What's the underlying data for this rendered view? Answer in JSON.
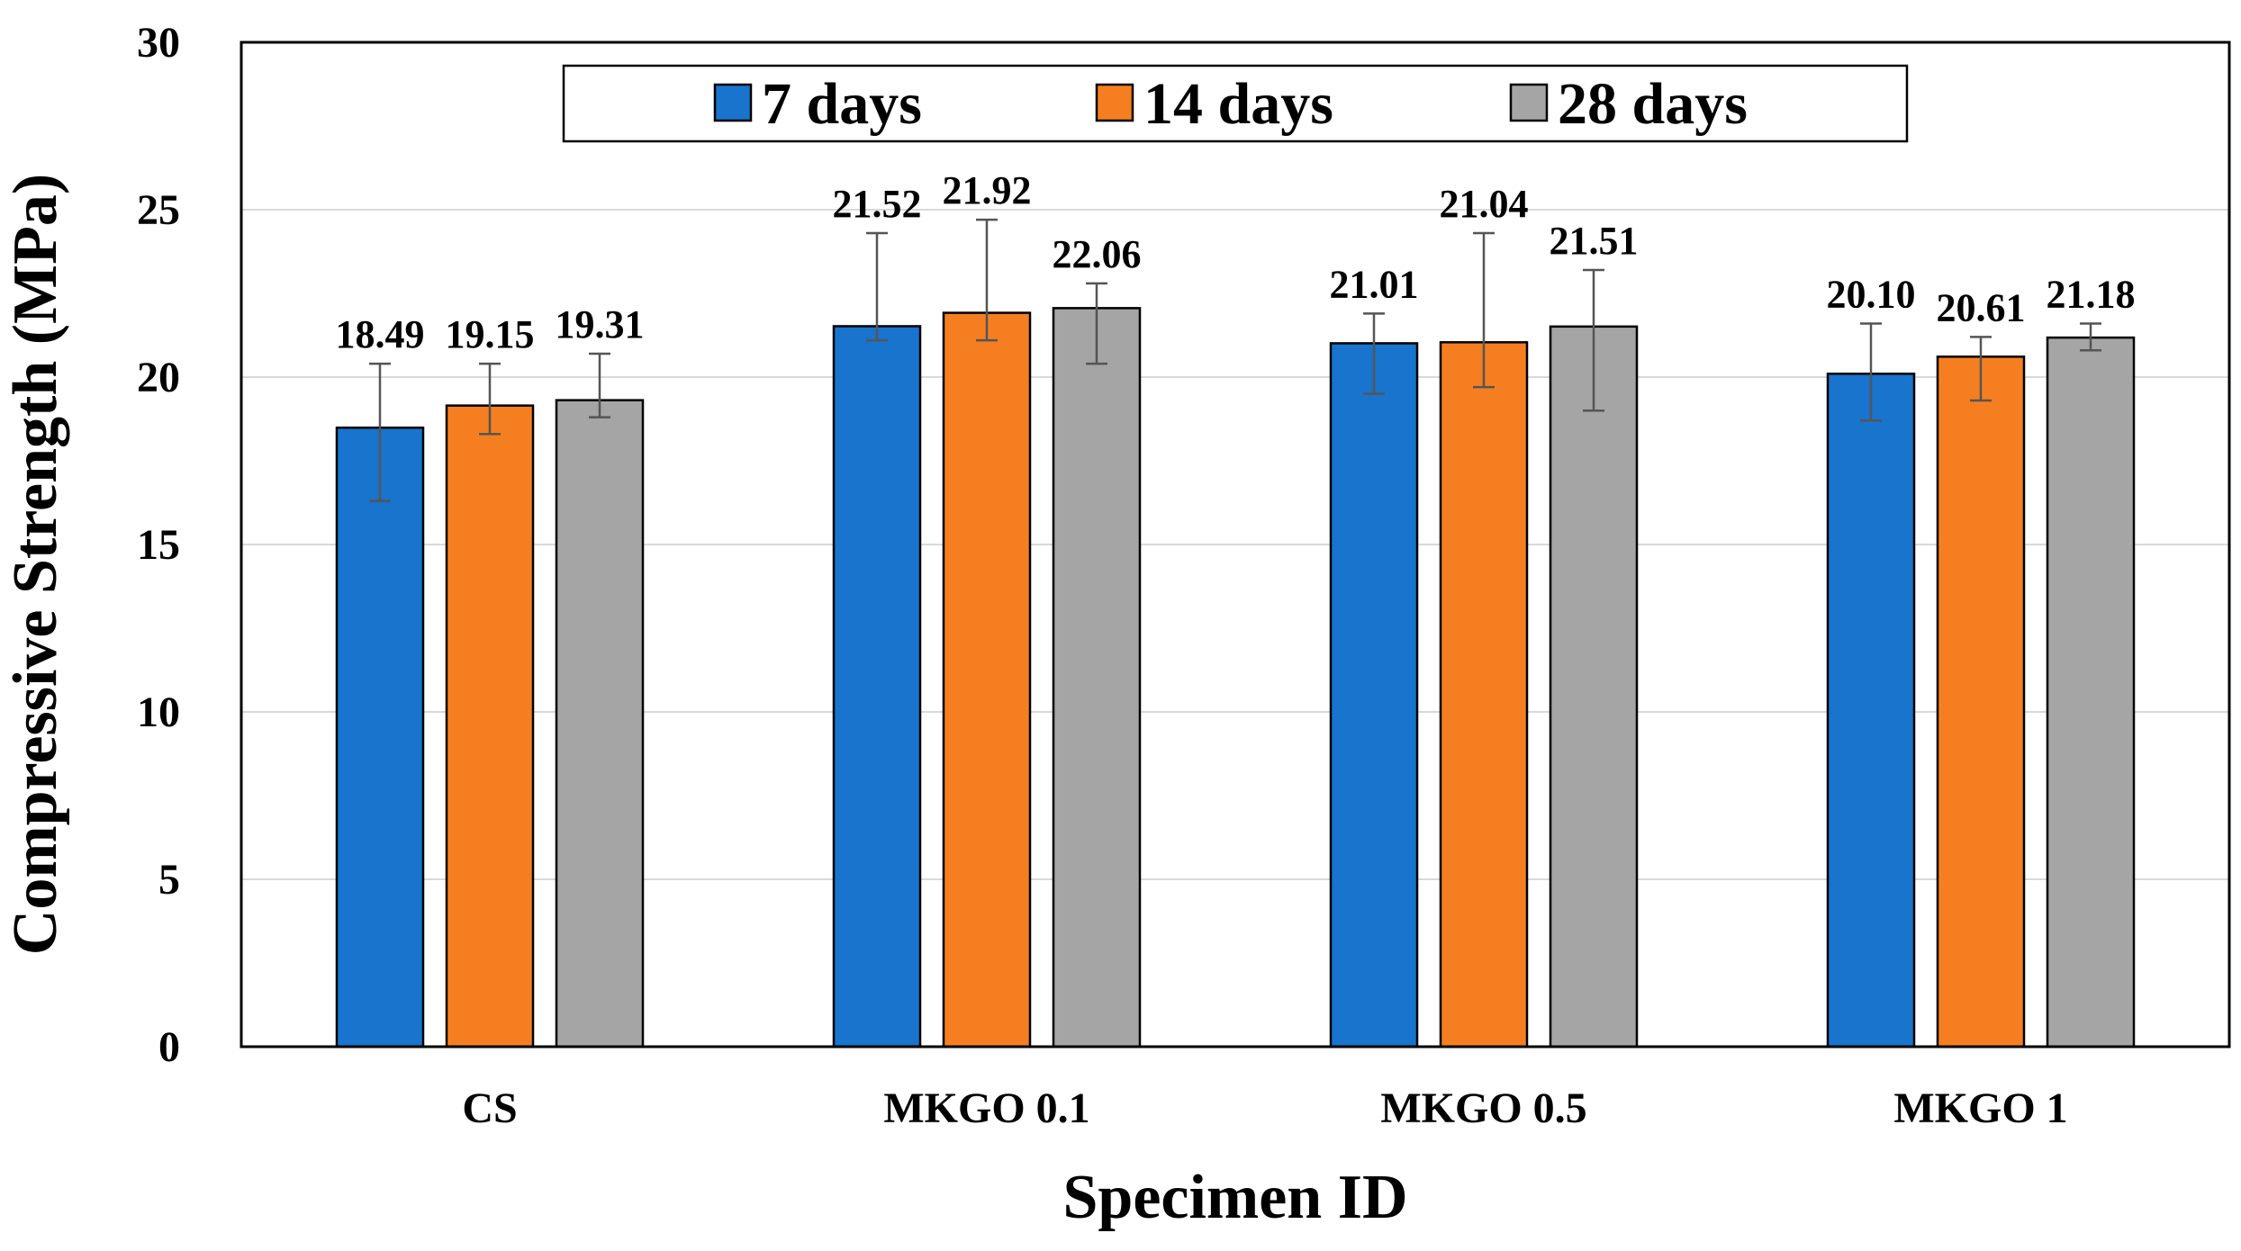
{
  "chart_data": {
    "type": "bar",
    "title": "",
    "xlabel": "Specimen ID",
    "ylabel": "Compressive Strength (MPa)",
    "ylim": [
      0,
      30
    ],
    "yticks": [
      0,
      5,
      10,
      15,
      20,
      25,
      30
    ],
    "ytick_labels": [
      "0",
      "5",
      "10",
      "15",
      "20",
      "25",
      "30"
    ],
    "grid": true,
    "legend_position": "top-center",
    "categories": [
      "CS",
      "MKGO 0.1",
      "MKGO 0.5",
      "MKGO 1"
    ],
    "series": [
      {
        "name": "7 days",
        "color": "#1874CD",
        "values": [
          18.49,
          21.52,
          21.01,
          20.1
        ],
        "labels": [
          "18.49",
          "21.52",
          "21.01",
          "20.10"
        ],
        "error_low": [
          16.3,
          21.1,
          19.5,
          18.7
        ],
        "error_high": [
          20.4,
          24.3,
          21.9,
          21.6
        ]
      },
      {
        "name": "14 days",
        "color": "#F57F20",
        "values": [
          19.15,
          21.92,
          21.04,
          20.61
        ],
        "labels": [
          "19.15",
          "21.92",
          "21.04",
          "20.61"
        ],
        "error_low": [
          18.3,
          21.1,
          19.7,
          19.3
        ],
        "error_high": [
          20.4,
          24.7,
          24.3,
          21.2
        ]
      },
      {
        "name": "28 days",
        "color": "#A5A5A5",
        "values": [
          19.31,
          22.06,
          21.51,
          21.18
        ],
        "labels": [
          "19.31",
          "22.06",
          "21.51",
          "21.18"
        ],
        "error_low": [
          18.8,
          20.4,
          19.0,
          20.8
        ],
        "error_high": [
          20.7,
          22.8,
          23.2,
          21.6
        ]
      }
    ]
  }
}
